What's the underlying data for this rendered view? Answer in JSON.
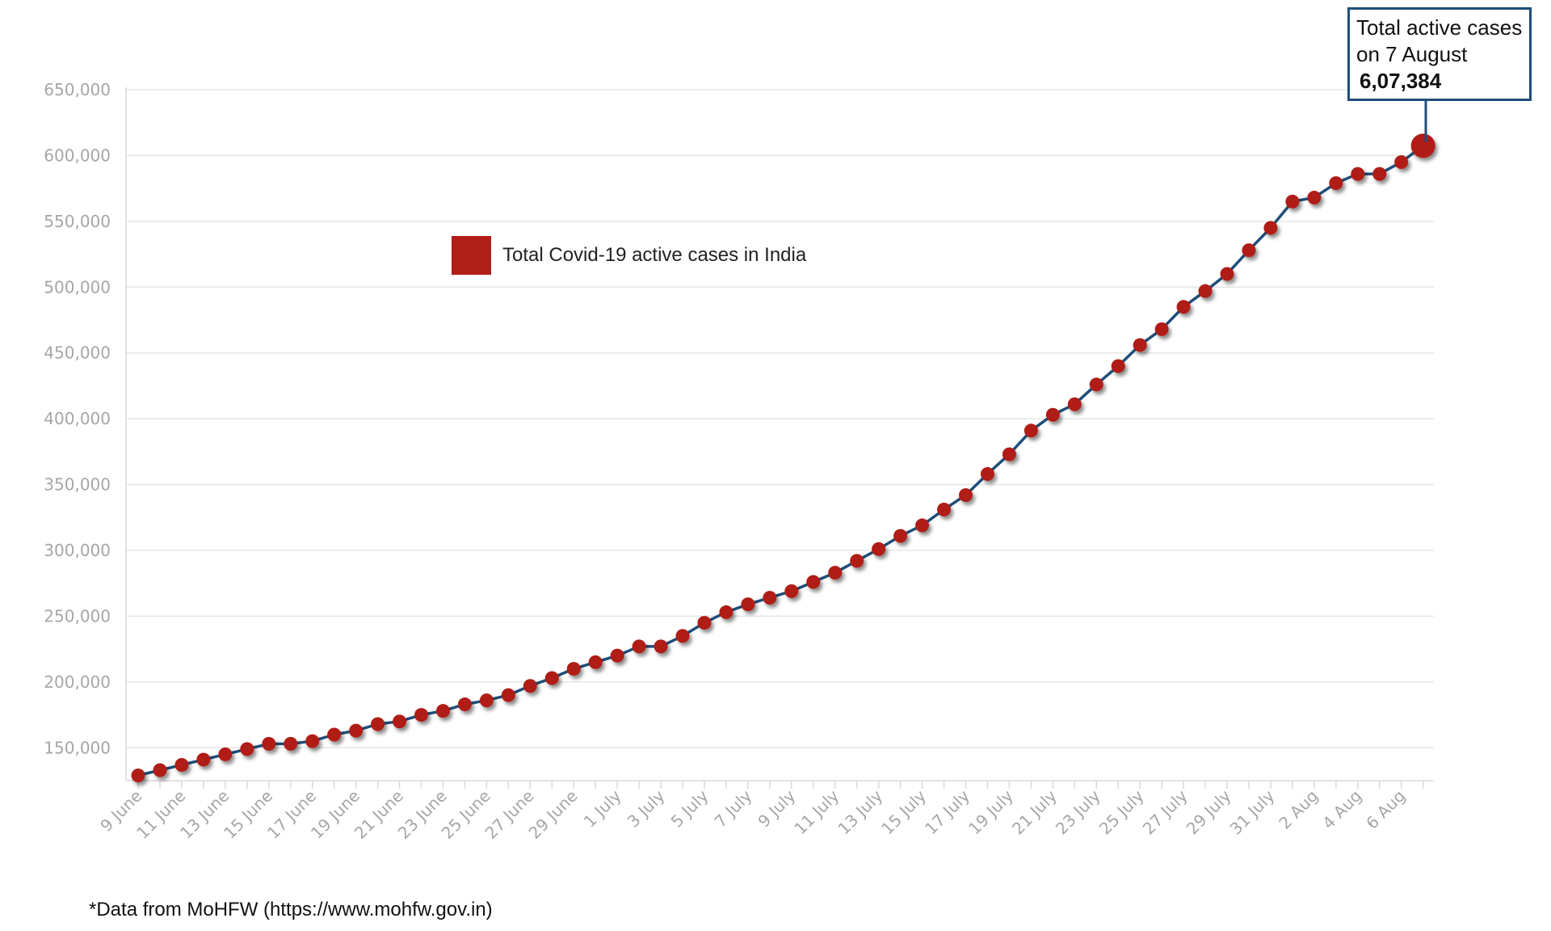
{
  "chart_data": {
    "type": "line",
    "title": "",
    "xlabel": "",
    "ylabel": "",
    "ylim": [
      125000,
      650000
    ],
    "yticks": [
      150000,
      200000,
      250000,
      300000,
      350000,
      400000,
      450000,
      500000,
      550000,
      600000,
      650000
    ],
    "ytick_labels": [
      "150,000",
      "200,000",
      "250,000",
      "300,000",
      "350,000",
      "400,000",
      "450,000",
      "500,000",
      "550,000",
      "600,000",
      "650,000"
    ],
    "grid": true,
    "legend_position": "top-left",
    "x": [
      "9 June",
      "10 June",
      "11 June",
      "12 June",
      "13 June",
      "14 June",
      "15 June",
      "16 June",
      "17 June",
      "18 June",
      "19 June",
      "20 June",
      "21 June",
      "22 June",
      "23 June",
      "24 June",
      "25 June",
      "26 June",
      "27 June",
      "28 June",
      "29 June",
      "30 June",
      "1 July",
      "2 July",
      "3 July",
      "4 July",
      "5 July",
      "6 July",
      "7 July",
      "8 July",
      "9 July",
      "10 July",
      "11 July",
      "12 July",
      "13 July",
      "14 July",
      "15 July",
      "16 July",
      "17 July",
      "18 July",
      "19 July",
      "20 July",
      "21 July",
      "22 July",
      "23 July",
      "24 July",
      "25 July",
      "26 July",
      "27 July",
      "28 July",
      "29 July",
      "30 July",
      "31 July",
      "1 Aug",
      "2 Aug",
      "3 Aug",
      "4 Aug",
      "5 Aug",
      "6 Aug",
      "7 Aug"
    ],
    "tick_labels": [
      "9 June",
      "11 June",
      "13 June",
      "15 June",
      "17 June",
      "19 June",
      "21 June",
      "23 June",
      "25 June",
      "27 June",
      "29 June",
      "1 July",
      "3 July",
      "5 July",
      "7 July",
      "9 July",
      "11 July",
      "13 July",
      "15 July",
      "17 July",
      "19 July",
      "21 July",
      "23 July",
      "25 July",
      "27 July",
      "29 July",
      "31 July",
      "2 Aug",
      "4 Aug",
      "6 Aug"
    ],
    "series": [
      {
        "name": "Total Covid-19 active cases in India",
        "values": [
          129000,
          133000,
          137000,
          141000,
          145000,
          149000,
          153000,
          153000,
          155000,
          160000,
          163000,
          168000,
          170000,
          175000,
          178000,
          183000,
          186000,
          190000,
          197000,
          203000,
          210000,
          215000,
          220000,
          227000,
          227000,
          235000,
          245000,
          253000,
          259000,
          264000,
          269000,
          276000,
          283000,
          292000,
          301000,
          311000,
          319000,
          331000,
          342000,
          358000,
          373000,
          391000,
          403000,
          411000,
          426000,
          440000,
          456000,
          468000,
          485000,
          497000,
          510000,
          528000,
          545000,
          565000,
          568000,
          579000,
          586000,
          586000,
          595000,
          607384
        ]
      }
    ],
    "colors": {
      "point": "#b01f17",
      "line": "#1f4e79",
      "grid": "#e6e6e6",
      "axis": "#d9d9d9"
    }
  },
  "legend": {
    "label": "Total Covid-19 active cases in India"
  },
  "annotation": {
    "line1": "Total active cases",
    "line2": "on 7 August",
    "value": "6,07,384"
  },
  "source_note": "*Data from MoHFW (https://www.mohfw.gov.in)"
}
